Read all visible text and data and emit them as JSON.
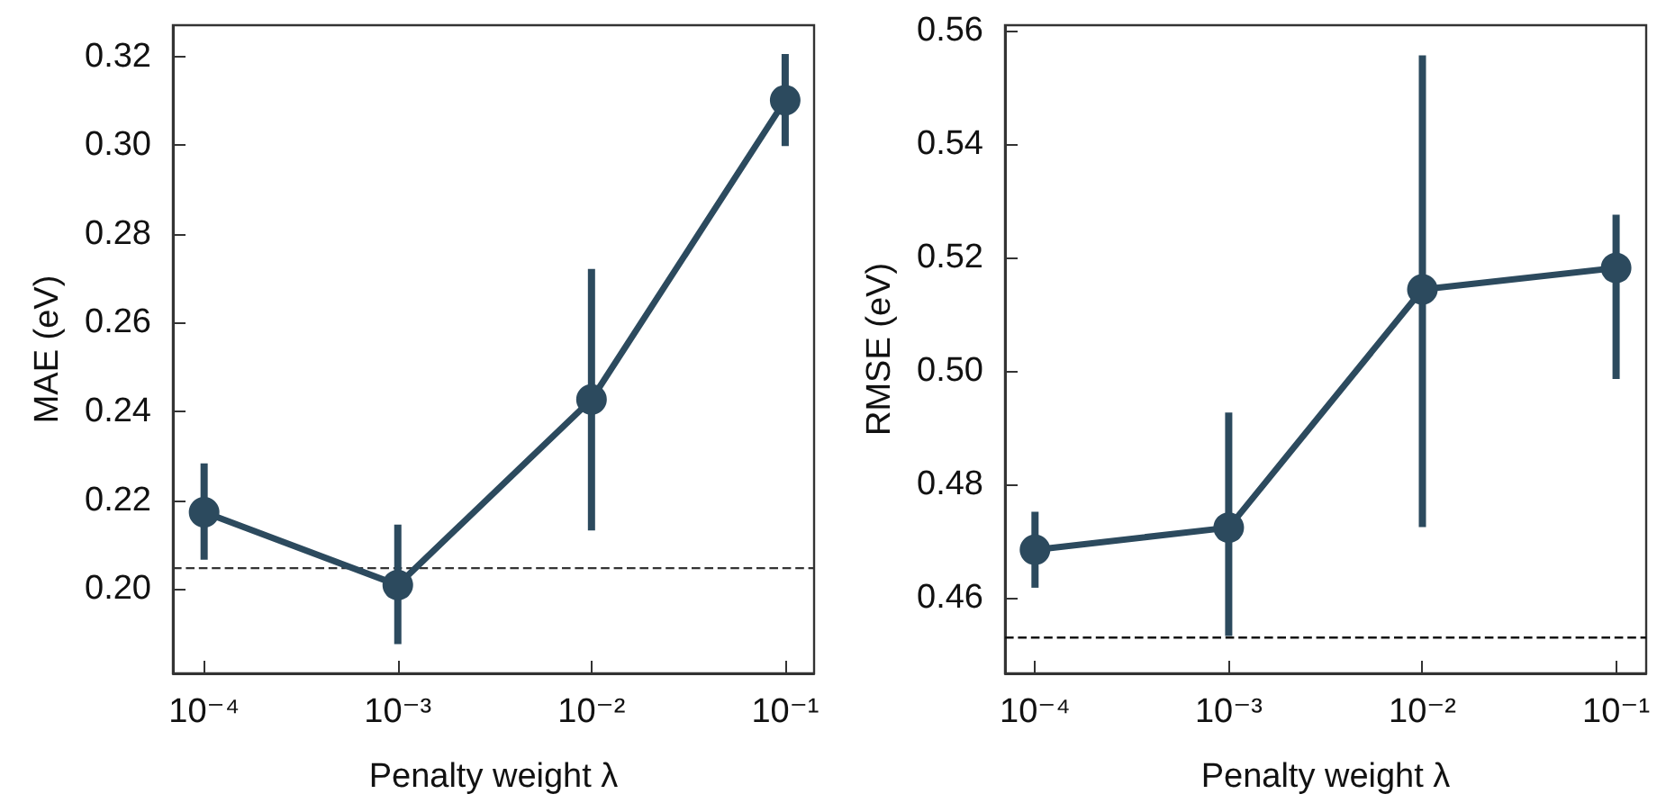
{
  "chart_data": [
    {
      "type": "line",
      "xlabel": "Penalty weight λ",
      "ylabel": "MAE (eV)",
      "log": "x",
      "marker": "circle",
      "line_style": "solid",
      "grid": false,
      "x": [
        0.0001,
        0.001,
        0.01,
        0.1
      ],
      "series": [
        {
          "color": "#2c4a5e",
          "values": [
            0.2173,
            0.2009,
            0.2427,
            0.3101
          ],
          "errors": [
            [
              0.2066,
              0.2283
            ],
            [
              0.1876,
              0.2145
            ],
            [
              0.2132,
              0.2721
            ],
            [
              0.2998,
              0.3205
            ]
          ]
        }
      ],
      "xlim": [
        6.9e-05,
        0.141
      ],
      "ylim": [
        0.181,
        0.327
      ],
      "xticks": [
        {
          "value": 0.0001,
          "label": "10⁻⁴"
        },
        {
          "value": 0.001,
          "label": "10⁻³"
        },
        {
          "value": 0.01,
          "label": "10⁻²"
        },
        {
          "value": 0.1,
          "label": "10⁻¹"
        }
      ],
      "yticks": [
        {
          "value": 0.2,
          "label": "0.20"
        },
        {
          "value": 0.22,
          "label": "0.22"
        },
        {
          "value": 0.24,
          "label": "0.24"
        },
        {
          "value": 0.26,
          "label": "0.26"
        },
        {
          "value": 0.28,
          "label": "0.28"
        },
        {
          "value": 0.3,
          "label": "0.30"
        },
        {
          "value": 0.32,
          "label": "0.32"
        }
      ],
      "ref_lines": [
        {
          "axis": "y",
          "value": 0.2047,
          "color": "#333333",
          "line_style": "dashed"
        }
      ]
    },
    {
      "type": "line",
      "xlabel": "Penalty weight λ",
      "ylabel": "RMSE (eV)",
      "log": "x",
      "marker": "circle",
      "line_style": "solid",
      "grid": false,
      "x": [
        0.0001,
        0.001,
        0.01,
        0.1
      ],
      "series": [
        {
          "color": "#2c4a5e",
          "values": [
            0.4685,
            0.4724,
            0.5144,
            0.5182
          ],
          "errors": [
            [
              0.4618,
              0.4752
            ],
            [
              0.4533,
              0.4927
            ],
            [
              0.4725,
              0.5557
            ],
            [
              0.4986,
              0.5276
            ]
          ]
        }
      ],
      "xlim": [
        7e-05,
        0.143
      ],
      "ylim": [
        0.4467,
        0.561
      ],
      "xticks": [
        {
          "value": 0.0001,
          "label": "10⁻⁴"
        },
        {
          "value": 0.001,
          "label": "10⁻³"
        },
        {
          "value": 0.01,
          "label": "10⁻²"
        },
        {
          "value": 0.1,
          "label": "10⁻¹"
        }
      ],
      "yticks": [
        {
          "value": 0.46,
          "label": "0.46"
        },
        {
          "value": 0.48,
          "label": "0.48"
        },
        {
          "value": 0.5,
          "label": "0.50"
        },
        {
          "value": 0.52,
          "label": "0.52"
        },
        {
          "value": 0.54,
          "label": "0.54"
        },
        {
          "value": 0.56,
          "label": "0.56"
        }
      ],
      "ref_lines": [
        {
          "axis": "y",
          "value": 0.453,
          "color": "#111111",
          "line_style": "dashed"
        }
      ]
    }
  ]
}
